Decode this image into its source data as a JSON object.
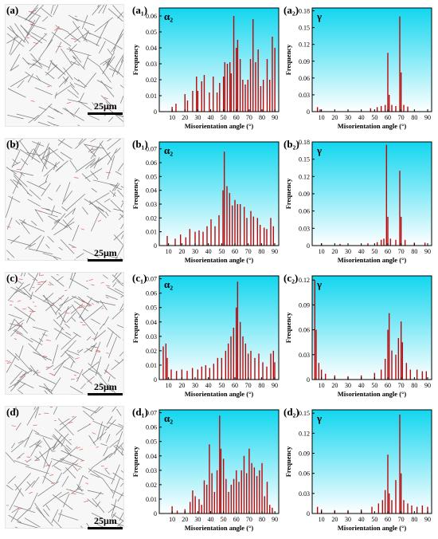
{
  "figure": {
    "rows": [
      {
        "map_label": "(a)",
        "scale_bar": "25μm",
        "alpha_label": "(a₁)",
        "gamma_label": "(a₂)"
      },
      {
        "map_label": "(b)",
        "scale_bar": "25μm",
        "alpha_label": "(b₁)",
        "gamma_label": "(b₂)"
      },
      {
        "map_label": "(c)",
        "scale_bar": "25μm",
        "alpha_label": "(c₁)",
        "gamma_label": "(c₂)"
      },
      {
        "map_label": "(d)",
        "scale_bar": "25μm",
        "alpha_label": "(d₁)",
        "gamma_label": "(d₂)"
      }
    ]
  },
  "colors": {
    "bar": "#b8090b",
    "bg_top": "#12d6ef",
    "bg_bottom": "#ffffff",
    "map_boundary": "#777777",
    "map_red": "#e06060"
  },
  "chart_data": [
    {
      "type": "bar",
      "panel": "(a₁)",
      "phase_label": "α₂",
      "xlabel": "Misorientation angle (°)",
      "ylabel": "Frequency",
      "xlim": [
        0,
        93
      ],
      "ylim": [
        0,
        0.065
      ],
      "xticks": [
        10,
        20,
        30,
        40,
        50,
        60,
        70,
        80,
        90
      ],
      "yticks": [
        0,
        0.01,
        0.02,
        0.03,
        0.04,
        0.05,
        0.06
      ],
      "ytick_labels": [
        "0",
        "0.01",
        "0.02",
        "0.03",
        "0.04",
        "0.05",
        "0.06"
      ],
      "peaks": [
        [
          10,
          0.003
        ],
        [
          13,
          0.005
        ],
        [
          20,
          0.011
        ],
        [
          22,
          0.007
        ],
        [
          26,
          0.013
        ],
        [
          29,
          0.022
        ],
        [
          30,
          0.013
        ],
        [
          33,
          0.019
        ],
        [
          35,
          0.023
        ],
        [
          39,
          0.012
        ],
        [
          42,
          0.022
        ],
        [
          45,
          0.012
        ],
        [
          47,
          0.018
        ],
        [
          50,
          0.022
        ],
        [
          51,
          0.031
        ],
        [
          53,
          0.03
        ],
        [
          55,
          0.031
        ],
        [
          56,
          0.024
        ],
        [
          58,
          0.06
        ],
        [
          60,
          0.04
        ],
        [
          61,
          0.045
        ],
        [
          63,
          0.033
        ],
        [
          65,
          0.02
        ],
        [
          67,
          0.017
        ],
        [
          69,
          0.02
        ],
        [
          71,
          0.033
        ],
        [
          73,
          0.058
        ],
        [
          75,
          0.031
        ],
        [
          77,
          0.039
        ],
        [
          79,
          0.016
        ],
        [
          81,
          0.02
        ],
        [
          84,
          0.033
        ],
        [
          86,
          0.02
        ],
        [
          88,
          0.047
        ],
        [
          90,
          0.04
        ]
      ]
    },
    {
      "type": "bar",
      "panel": "(a₂)",
      "phase_label": "γ",
      "xlabel": "Misorientation angle (°)",
      "ylabel": "Frequency",
      "xlim": [
        3,
        93
      ],
      "ylim": [
        0,
        0.185
      ],
      "xticks": [
        10,
        20,
        30,
        40,
        50,
        60,
        70,
        80,
        90
      ],
      "yticks": [
        0,
        0.03,
        0.06,
        0.09,
        0.12,
        0.15,
        0.18
      ],
      "ytick_labels": [
        "0",
        "0.03",
        "0.06",
        "0.09",
        "0.12",
        "0.15",
        "0.18"
      ],
      "peaks": [
        [
          7,
          0.008
        ],
        [
          9,
          0.004
        ],
        [
          47,
          0.006
        ],
        [
          52,
          0.008
        ],
        [
          55,
          0.01
        ],
        [
          58,
          0.012
        ],
        [
          60,
          0.105
        ],
        [
          61,
          0.03
        ],
        [
          63,
          0.012
        ],
        [
          66,
          0.01
        ],
        [
          69,
          0.17
        ],
        [
          70,
          0.07
        ],
        [
          72,
          0.012
        ],
        [
          75,
          0.009
        ]
      ]
    },
    {
      "type": "bar",
      "panel": "(b₁)",
      "phase_label": "α₂",
      "xlabel": "Misorientation angle (°)",
      "ylabel": "Frequency",
      "xlim": [
        3,
        93
      ],
      "ylim": [
        0,
        0.075
      ],
      "xticks": [
        10,
        20,
        30,
        40,
        50,
        60,
        70,
        80,
        90
      ],
      "yticks": [
        0,
        0.01,
        0.02,
        0.03,
        0.04,
        0.05,
        0.06,
        0.07
      ],
      "ytick_labels": [
        "0",
        "0.01",
        "0.02",
        "0.03",
        "0.04",
        "0.05",
        "0.06",
        "0.07"
      ],
      "peaks": [
        [
          9,
          0.007
        ],
        [
          15,
          0.005
        ],
        [
          19,
          0.008
        ],
        [
          23,
          0.006
        ],
        [
          26,
          0.012
        ],
        [
          30,
          0.01
        ],
        [
          33,
          0.011
        ],
        [
          36,
          0.01
        ],
        [
          39,
          0.014
        ],
        [
          42,
          0.019
        ],
        [
          45,
          0.014
        ],
        [
          48,
          0.022
        ],
        [
          51,
          0.04
        ],
        [
          52,
          0.068
        ],
        [
          54,
          0.043
        ],
        [
          56,
          0.038
        ],
        [
          58,
          0.029
        ],
        [
          60,
          0.033
        ],
        [
          62,
          0.03
        ],
        [
          64,
          0.03
        ],
        [
          67,
          0.028
        ],
        [
          69,
          0.02
        ],
        [
          72,
          0.025
        ],
        [
          74,
          0.021
        ],
        [
          77,
          0.02
        ],
        [
          79,
          0.015
        ],
        [
          82,
          0.013
        ],
        [
          84,
          0.012
        ],
        [
          87,
          0.02
        ],
        [
          89,
          0.014
        ]
      ]
    },
    {
      "type": "bar",
      "panel": "(b₂)",
      "phase_label": "γ",
      "xlabel": "Misorientation angle (°)",
      "ylabel": "Frequency",
      "xlim": [
        3,
        93
      ],
      "ylim": [
        0,
        0.18
      ],
      "xticks": [
        10,
        20,
        30,
        40,
        50,
        60,
        70,
        80,
        90
      ],
      "yticks": [
        0,
        0.03,
        0.06,
        0.09,
        0.12,
        0.15,
        0.18
      ],
      "ytick_labels": [
        "0",
        "0.03",
        "0.06",
        "0.09",
        "0.12",
        "0.15",
        "0.18"
      ],
      "peaks": [
        [
          10,
          0.004
        ],
        [
          24,
          0.003
        ],
        [
          45,
          0.004
        ],
        [
          52,
          0.006
        ],
        [
          55,
          0.01
        ],
        [
          57,
          0.012
        ],
        [
          59,
          0.175
        ],
        [
          60,
          0.05
        ],
        [
          62,
          0.012
        ],
        [
          66,
          0.01
        ],
        [
          69,
          0.13
        ],
        [
          70,
          0.05
        ],
        [
          73,
          0.01
        ],
        [
          80,
          0.005
        ],
        [
          88,
          0.005
        ]
      ]
    },
    {
      "type": "bar",
      "panel": "(c₁)",
      "phase_label": "α₂",
      "xlabel": "Misorientation angle (°)",
      "ylabel": "Frequency",
      "xlim": [
        3,
        93
      ],
      "ylim": [
        0,
        0.072
      ],
      "xticks": [
        10,
        20,
        30,
        40,
        50,
        60,
        70,
        80,
        90
      ],
      "yticks": [
        0,
        0.01,
        0.02,
        0.03,
        0.04,
        0.05,
        0.06,
        0.07
      ],
      "ytick_labels": [
        "0",
        "0.01",
        "0.02",
        "0.03",
        "0.04",
        "0.05",
        "0.06",
        "0.07"
      ],
      "peaks": [
        [
          6,
          0.023
        ],
        [
          8,
          0.025
        ],
        [
          9,
          0.015
        ],
        [
          12,
          0.007
        ],
        [
          16,
          0.006
        ],
        [
          20,
          0.007
        ],
        [
          24,
          0.006
        ],
        [
          28,
          0.008
        ],
        [
          32,
          0.007
        ],
        [
          35,
          0.009
        ],
        [
          38,
          0.01
        ],
        [
          41,
          0.008
        ],
        [
          44,
          0.011
        ],
        [
          47,
          0.015
        ],
        [
          50,
          0.015
        ],
        [
          53,
          0.02
        ],
        [
          55,
          0.025
        ],
        [
          57,
          0.03
        ],
        [
          59,
          0.036
        ],
        [
          61,
          0.05
        ],
        [
          62,
          0.068
        ],
        [
          64,
          0.04
        ],
        [
          66,
          0.03
        ],
        [
          68,
          0.025
        ],
        [
          70,
          0.018
        ],
        [
          72,
          0.02
        ],
        [
          75,
          0.015
        ],
        [
          78,
          0.018
        ],
        [
          81,
          0.012
        ],
        [
          84,
          0.009
        ],
        [
          87,
          0.018
        ],
        [
          89,
          0.02
        ],
        [
          90,
          0.012
        ]
      ]
    },
    {
      "type": "bar",
      "panel": "(c₂)",
      "phase_label": "γ",
      "xlabel": "Misorientation angle (°)",
      "ylabel": "Frequency",
      "xlim": [
        3,
        93
      ],
      "ylim": [
        0,
        0.125
      ],
      "xticks": [
        10,
        20,
        30,
        40,
        50,
        60,
        70,
        80,
        90
      ],
      "yticks": [
        0,
        0.03,
        0.06,
        0.09,
        0.12
      ],
      "ytick_labels": [
        "0",
        "0.03",
        "0.06",
        "0.09",
        "0.12"
      ],
      "peaks": [
        [
          5,
          0.12
        ],
        [
          6,
          0.06
        ],
        [
          8,
          0.02
        ],
        [
          10,
          0.012
        ],
        [
          13,
          0.007
        ],
        [
          20,
          0.005
        ],
        [
          30,
          0.004
        ],
        [
          40,
          0.005
        ],
        [
          50,
          0.008
        ],
        [
          55,
          0.012
        ],
        [
          58,
          0.025
        ],
        [
          60,
          0.06
        ],
        [
          61,
          0.08
        ],
        [
          63,
          0.035
        ],
        [
          66,
          0.03
        ],
        [
          68,
          0.05
        ],
        [
          70,
          0.07
        ],
        [
          71,
          0.045
        ],
        [
          74,
          0.02
        ],
        [
          77,
          0.012
        ],
        [
          82,
          0.012
        ],
        [
          86,
          0.01
        ],
        [
          89,
          0.01
        ]
      ]
    },
    {
      "type": "bar",
      "panel": "(d₁)",
      "phase_label": "α₂",
      "xlabel": "Misorientation angle (°)",
      "ylabel": "Frequency",
      "xlim": [
        0,
        93
      ],
      "ylim": [
        0,
        0.072
      ],
      "xticks": [
        10,
        20,
        30,
        40,
        50,
        60,
        70,
        80,
        90
      ],
      "yticks": [
        0,
        0.01,
        0.02,
        0.03,
        0.04,
        0.05,
        0.06,
        0.07
      ],
      "ytick_labels": [
        "0",
        "0.01",
        "0.02",
        "0.03",
        "0.04",
        "0.05",
        "0.06",
        "0.07"
      ],
      "peaks": [
        [
          10,
          0.005
        ],
        [
          14,
          0.002
        ],
        [
          20,
          0.003
        ],
        [
          24,
          0.008
        ],
        [
          26,
          0.016
        ],
        [
          28,
          0.012
        ],
        [
          31,
          0.01
        ],
        [
          33,
          0.006
        ],
        [
          35,
          0.023
        ],
        [
          37,
          0.02
        ],
        [
          39,
          0.048
        ],
        [
          41,
          0.028
        ],
        [
          43,
          0.015
        ],
        [
          45,
          0.03
        ],
        [
          47,
          0.068
        ],
        [
          48,
          0.045
        ],
        [
          50,
          0.038
        ],
        [
          52,
          0.024
        ],
        [
          54,
          0.015
        ],
        [
          56,
          0.02
        ],
        [
          58,
          0.024
        ],
        [
          60,
          0.03
        ],
        [
          62,
          0.022
        ],
        [
          64,
          0.03
        ],
        [
          66,
          0.04
        ],
        [
          68,
          0.028
        ],
        [
          70,
          0.045
        ],
        [
          72,
          0.035
        ],
        [
          74,
          0.032
        ],
        [
          76,
          0.026
        ],
        [
          78,
          0.03
        ],
        [
          80,
          0.035
        ],
        [
          82,
          0.012
        ],
        [
          84,
          0.022
        ],
        [
          86,
          0.006
        ],
        [
          88,
          0.004
        ]
      ]
    },
    {
      "type": "bar",
      "panel": "(d₂)",
      "phase_label": "γ",
      "xlabel": "Misorientation angle (°)",
      "ylabel": "Frequency",
      "xlim": [
        3,
        93
      ],
      "ylim": [
        0,
        0.155
      ],
      "xticks": [
        10,
        20,
        30,
        40,
        50,
        60,
        70,
        80,
        90
      ],
      "yticks": [
        0,
        0.03,
        0.06,
        0.09,
        0.12,
        0.15
      ],
      "ytick_labels": [
        "0",
        "0.03",
        "0.06",
        "0.09",
        "0.12",
        "0.15"
      ],
      "peaks": [
        [
          7,
          0.01
        ],
        [
          10,
          0.006
        ],
        [
          20,
          0.005
        ],
        [
          30,
          0.005
        ],
        [
          40,
          0.006
        ],
        [
          48,
          0.01
        ],
        [
          53,
          0.015
        ],
        [
          56,
          0.02
        ],
        [
          58,
          0.035
        ],
        [
          60,
          0.088
        ],
        [
          61,
          0.03
        ],
        [
          63,
          0.02
        ],
        [
          66,
          0.05
        ],
        [
          69,
          0.148
        ],
        [
          70,
          0.06
        ],
        [
          72,
          0.02
        ],
        [
          75,
          0.015
        ],
        [
          78,
          0.012
        ],
        [
          82,
          0.01
        ],
        [
          86,
          0.012
        ],
        [
          90,
          0.01
        ]
      ]
    }
  ]
}
